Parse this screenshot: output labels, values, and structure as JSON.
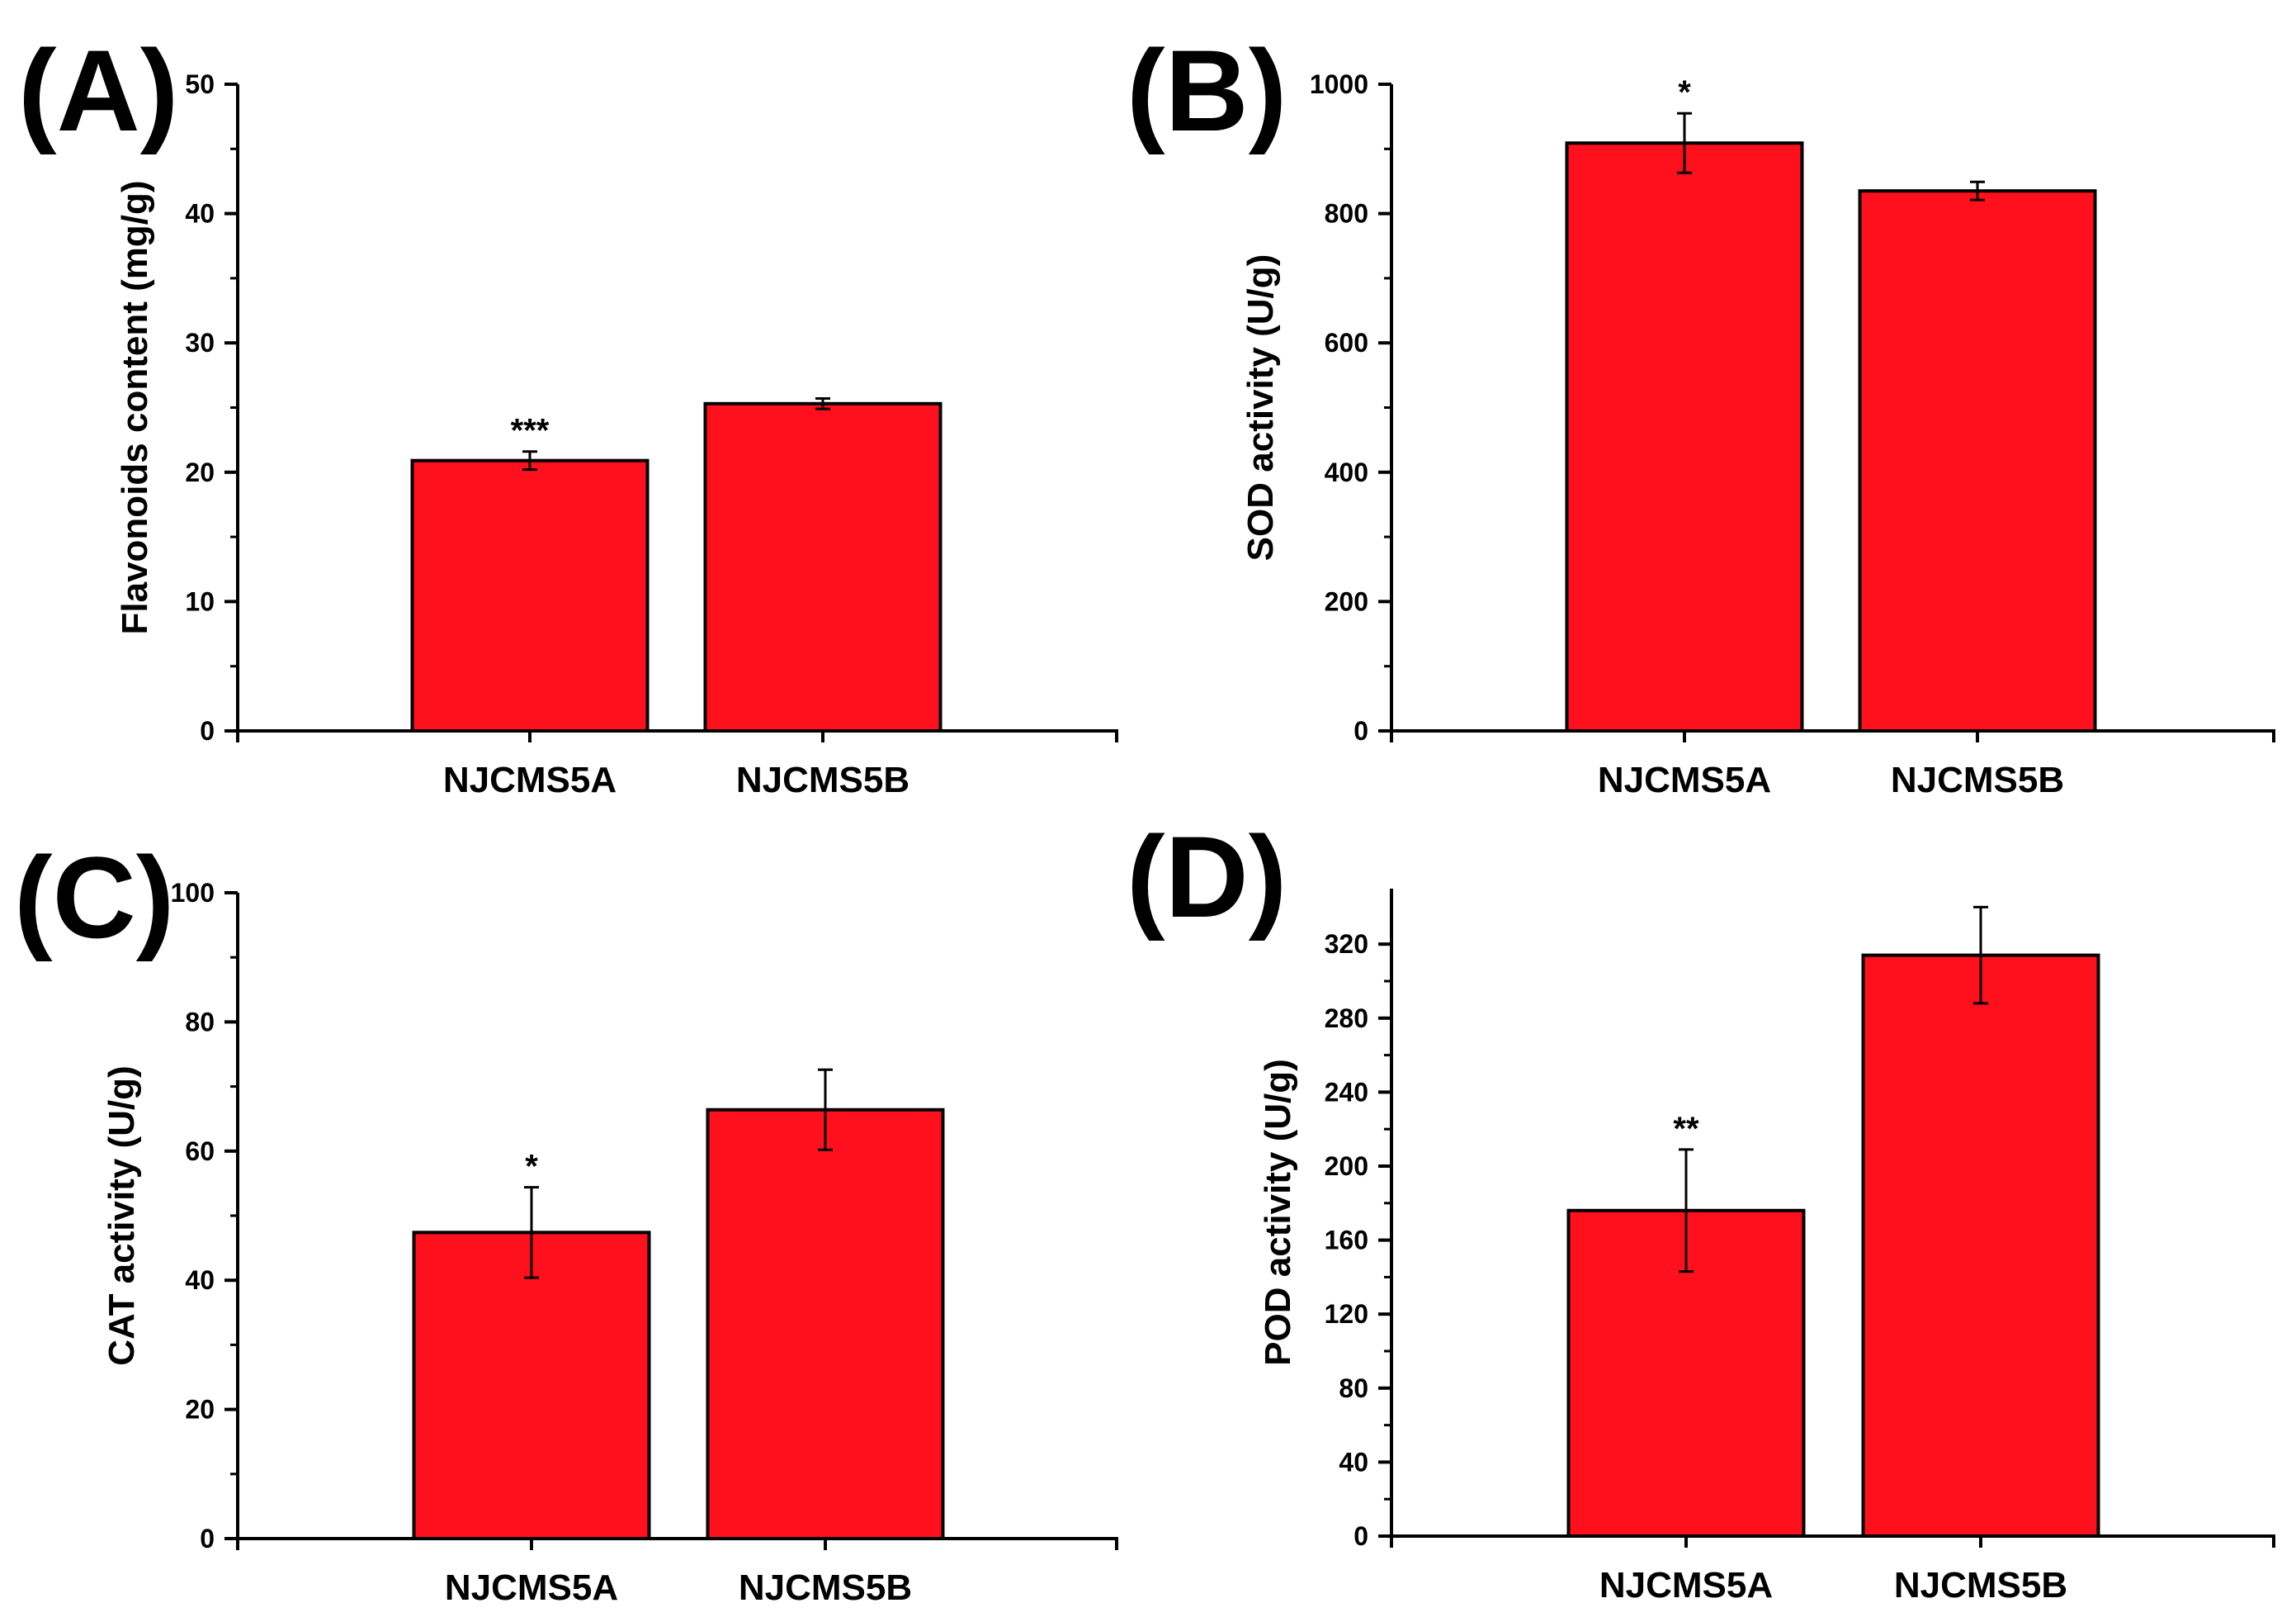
{
  "chart_data": [
    {
      "panel": "(A)",
      "type": "bar",
      "categories": [
        "NJCMS5A",
        "NJCMS5B"
      ],
      "values": [
        20.9,
        25.3
      ],
      "errors": [
        0.7,
        0.4
      ],
      "significance": [
        "***",
        ""
      ],
      "ylabel": "Flavonoids content (mg/g)",
      "xlabel": "",
      "ylim": [
        0,
        50
      ],
      "yticks": [
        0,
        10,
        20,
        30,
        40,
        50
      ],
      "bar_color": "#ff101c"
    },
    {
      "panel": "(B)",
      "type": "bar",
      "categories": [
        "NJCMS5A",
        "NJCMS5B"
      ],
      "values": [
        909,
        835
      ],
      "errors": [
        46,
        14
      ],
      "significance": [
        "*",
        ""
      ],
      "ylabel": "SOD activity (U/g)",
      "xlabel": "",
      "ylim": [
        0,
        1000
      ],
      "yticks": [
        0,
        200,
        400,
        600,
        800,
        1000
      ],
      "bar_color": "#ff101c"
    },
    {
      "panel": "(C)",
      "type": "bar",
      "categories": [
        "NJCMS5A",
        "NJCMS5B"
      ],
      "values": [
        47.4,
        66.4
      ],
      "errors": [
        7,
        6.2
      ],
      "significance": [
        "*",
        ""
      ],
      "ylabel": "CAT activity (U/g)",
      "xlabel": "",
      "ylim": [
        0,
        100
      ],
      "yticks": [
        0,
        20,
        40,
        60,
        80,
        100
      ],
      "bar_color": "#ff101c"
    },
    {
      "panel": "(D)",
      "type": "bar",
      "categories": [
        "NJCMS5A",
        "NJCMS5B"
      ],
      "values": [
        176,
        314
      ],
      "errors": [
        33,
        26
      ],
      "significance": [
        "**",
        ""
      ],
      "ylabel": "POD activity (U/g)",
      "xlabel": "",
      "ylim": [
        0,
        350
      ],
      "yticks": [
        0,
        40,
        80,
        120,
        160,
        200,
        240,
        280,
        320
      ],
      "bar_color": "#ff101c"
    }
  ]
}
